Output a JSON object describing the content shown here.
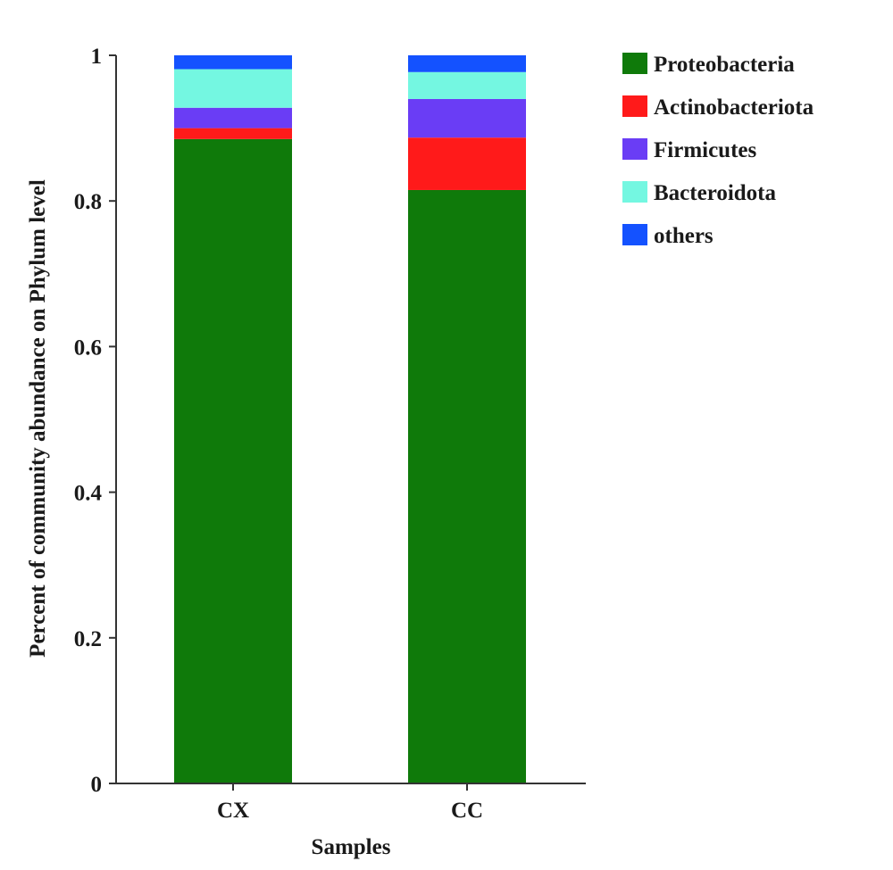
{
  "chart_data": {
    "type": "bar",
    "stacked": true,
    "xlabel": "Samples",
    "ylabel": "Percent of community abundance on Phylum level",
    "categories": [
      "CX",
      "CC"
    ],
    "ylim": [
      0,
      1
    ],
    "yticks": [
      "0",
      "0.2",
      "0.4",
      "0.6",
      "0.8",
      "1"
    ],
    "grid": false,
    "legend_position": "top-right",
    "series": [
      {
        "name": "Proteobacteria",
        "color": "#0f7a0a",
        "values": [
          0.885,
          0.815
        ]
      },
      {
        "name": "Actinobacteriota",
        "color": "#ff1a1a",
        "values": [
          0.015,
          0.072
        ]
      },
      {
        "name": "Firmicutes",
        "color": "#6a3df5",
        "values": [
          0.028,
          0.053
        ]
      },
      {
        "name": "Bacteroidota",
        "color": "#74f7e1",
        "values": [
          0.053,
          0.037
        ]
      },
      {
        "name": "others",
        "color": "#1452ff",
        "values": [
          0.019,
          0.023
        ]
      }
    ]
  }
}
